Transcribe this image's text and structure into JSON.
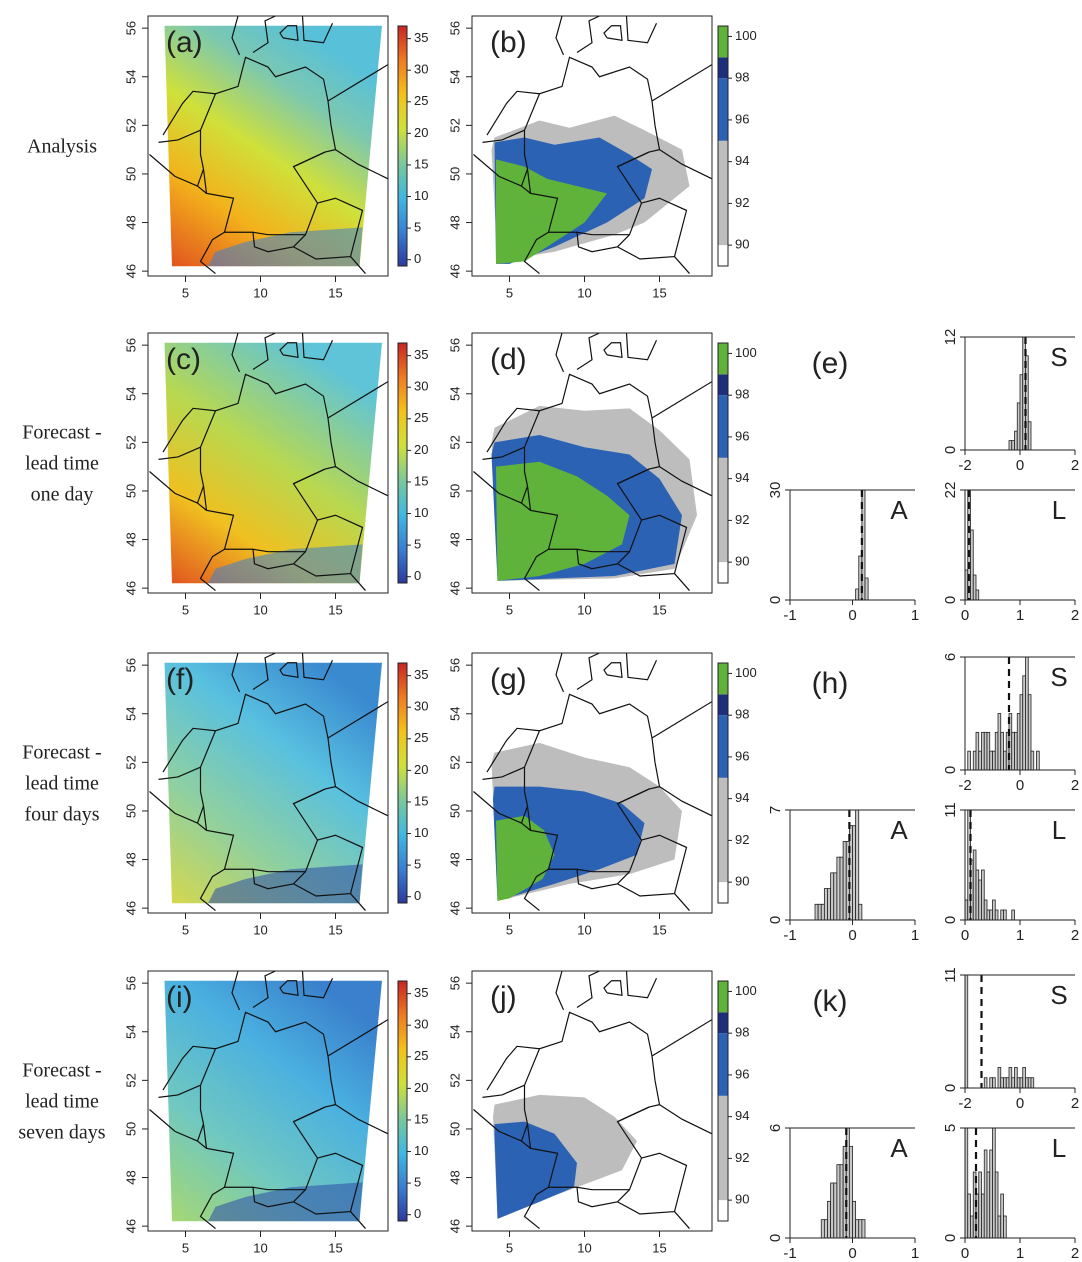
{
  "row_labels": [
    [
      "Analysis"
    ],
    [
      "Forecast -",
      "lead time",
      "one day"
    ],
    [
      "Forecast -",
      "lead time",
      "four days"
    ],
    [
      "Forecast -",
      "lead time",
      "seven days"
    ]
  ],
  "chart_data": [
    {
      "type": "map",
      "panel": "(a)",
      "xlim": [
        2.5,
        18.5
      ],
      "xticks": [
        5,
        10,
        15
      ],
      "ylim": [
        45.8,
        56.5
      ],
      "yticks": [
        46,
        48,
        50,
        52,
        54,
        56
      ],
      "colorbar": {
        "kind": "continuous",
        "lim": [
          -1,
          37
        ],
        "ticks": [
          0,
          5,
          10,
          15,
          20,
          25,
          30,
          35
        ],
        "colors": [
          "#2b3a9a",
          "#3a7fd0",
          "#40b8e0",
          "#7cc89a",
          "#cfe03a",
          "#f3c21b",
          "#ee7b22",
          "#c82424"
        ]
      }
    },
    {
      "type": "map",
      "panel": "(b)",
      "xlim": [
        2.5,
        18.5
      ],
      "xticks": [
        5,
        10,
        15
      ],
      "ylim": [
        45.8,
        56.5
      ],
      "yticks": [
        46,
        48,
        50,
        52,
        54,
        56
      ],
      "colorbar": {
        "kind": "discrete",
        "lim": [
          89,
          100.5
        ],
        "ticks": [
          90,
          92,
          94,
          96,
          98,
          100
        ],
        "levels": [
          89,
          90,
          95,
          98,
          99,
          100.5
        ],
        "colors": [
          "#ffffff",
          "#bdbdbd",
          "#2c62b4",
          "#1d2f7a",
          "#5fb33a"
        ]
      }
    },
    {
      "type": "map",
      "panel": "(c)",
      "xlim": [
        2.5,
        18.5
      ],
      "xticks": [
        5,
        10,
        15
      ],
      "ylim": [
        45.8,
        56.5
      ],
      "yticks": [
        46,
        48,
        50,
        52,
        54,
        56
      ],
      "colorbar": {
        "kind": "continuous",
        "lim": [
          -1,
          37
        ],
        "ticks": [
          0,
          5,
          10,
          15,
          20,
          25,
          30,
          35
        ],
        "colors": [
          "#2b3a9a",
          "#3a7fd0",
          "#40b8e0",
          "#7cc89a",
          "#cfe03a",
          "#f3c21b",
          "#ee7b22",
          "#c82424"
        ]
      }
    },
    {
      "type": "map",
      "panel": "(d)",
      "xlim": [
        2.5,
        18.5
      ],
      "xticks": [
        5,
        10,
        15
      ],
      "ylim": [
        45.8,
        56.5
      ],
      "yticks": [
        46,
        48,
        50,
        52,
        54,
        56
      ],
      "colorbar": {
        "kind": "discrete",
        "lim": [
          89,
          100.5
        ],
        "ticks": [
          90,
          92,
          94,
          96,
          98,
          100
        ],
        "levels": [
          89,
          90,
          95,
          98,
          99,
          100.5
        ],
        "colors": [
          "#ffffff",
          "#bdbdbd",
          "#2c62b4",
          "#1d2f7a",
          "#5fb33a"
        ]
      }
    },
    {
      "type": "histogram",
      "panel": "(e)",
      "label": "S",
      "xlim": [
        -2,
        2
      ],
      "xticks": [
        -2,
        0,
        2
      ],
      "ylim": [
        0,
        12
      ],
      "yticks": [
        0,
        12
      ],
      "bins": [
        -0.4,
        -0.3,
        -0.2,
        -0.1,
        0,
        0.1,
        0.2,
        0.3,
        0.4
      ],
      "counts": [
        1,
        1,
        2,
        5,
        8,
        12,
        10,
        3
      ],
      "reference_line": 0.2
    },
    {
      "type": "histogram",
      "label": "A",
      "xlim": [
        -1,
        1
      ],
      "xticks": [
        -1,
        0,
        1
      ],
      "ylim": [
        0,
        30
      ],
      "yticks": [
        0,
        30
      ],
      "bins": [
        0.05,
        0.1,
        0.15,
        0.2,
        0.25
      ],
      "counts": [
        3,
        12,
        30,
        6
      ],
      "reference_line": 0.15
    },
    {
      "type": "histogram",
      "label": "L",
      "xlim": [
        0,
        2
      ],
      "xticks": [
        0,
        1,
        2
      ],
      "ylim": [
        0,
        22
      ],
      "yticks": [
        0,
        22
      ],
      "bins": [
        0,
        0.05,
        0.1,
        0.15,
        0.2,
        0.25
      ],
      "counts": [
        6,
        22,
        14,
        5,
        2
      ],
      "reference_line": 0.07
    },
    {
      "type": "map",
      "panel": "(f)",
      "xlim": [
        2.5,
        18.5
      ],
      "xticks": [
        5,
        10,
        15
      ],
      "ylim": [
        45.8,
        56.5
      ],
      "yticks": [
        46,
        48,
        50,
        52,
        54,
        56
      ],
      "colorbar": {
        "kind": "continuous",
        "lim": [
          -1,
          37
        ],
        "ticks": [
          0,
          5,
          10,
          15,
          20,
          25,
          30,
          35
        ],
        "colors": [
          "#2b3a9a",
          "#3a7fd0",
          "#40b8e0",
          "#7cc89a",
          "#cfe03a",
          "#f3c21b",
          "#ee7b22",
          "#c82424"
        ]
      }
    },
    {
      "type": "map",
      "panel": "(g)",
      "xlim": [
        2.5,
        18.5
      ],
      "xticks": [
        5,
        10,
        15
      ],
      "ylim": [
        45.8,
        56.5
      ],
      "yticks": [
        46,
        48,
        50,
        52,
        54,
        56
      ],
      "colorbar": {
        "kind": "discrete",
        "lim": [
          89,
          100.5
        ],
        "ticks": [
          90,
          92,
          94,
          96,
          98,
          100
        ],
        "levels": [
          89,
          90,
          95,
          98,
          99,
          100.5
        ],
        "colors": [
          "#ffffff",
          "#bdbdbd",
          "#2c62b4",
          "#1d2f7a",
          "#5fb33a"
        ]
      }
    },
    {
      "type": "histogram",
      "panel": "(h)",
      "label": "S",
      "xlim": [
        -2,
        2
      ],
      "xticks": [
        -2,
        0,
        2
      ],
      "ylim": [
        0,
        6
      ],
      "yticks": [
        0,
        6
      ],
      "bins": [
        -1.9,
        -1.8,
        -1.7,
        -1.6,
        -1.5,
        -1.4,
        -1.3,
        -1.2,
        -1.1,
        -1.0,
        -0.9,
        -0.8,
        -0.7,
        -0.6,
        -0.5,
        -0.4,
        -0.3,
        -0.2,
        -0.1,
        0,
        0.1,
        0.2,
        0.3,
        0.4,
        0.5,
        0.6,
        0.7,
        0.8
      ],
      "counts": [
        1,
        0,
        1,
        2,
        1,
        2,
        2,
        2,
        1,
        1,
        2,
        3,
        2,
        1,
        2,
        3,
        2,
        2,
        3,
        4,
        5,
        6,
        4,
        1,
        0,
        1,
        0
      ],
      "reference_line": -0.4
    },
    {
      "type": "histogram",
      "label": "A",
      "xlim": [
        -1,
        1
      ],
      "xticks": [
        -1,
        0,
        1
      ],
      "ylim": [
        0,
        7
      ],
      "yticks": [
        0,
        7
      ],
      "bins": [
        -0.6,
        -0.55,
        -0.5,
        -0.45,
        -0.4,
        -0.35,
        -0.3,
        -0.25,
        -0.2,
        -0.15,
        -0.1,
        -0.05,
        0,
        0.05,
        0.1,
        0.15
      ],
      "counts": [
        1,
        1,
        1,
        2,
        2,
        3,
        3,
        4,
        4,
        5,
        5,
        6,
        6,
        7,
        1
      ],
      "reference_line": -0.05
    },
    {
      "type": "histogram",
      "label": "L",
      "xlim": [
        0,
        2
      ],
      "xticks": [
        0,
        1,
        2
      ],
      "ylim": [
        0,
        11
      ],
      "yticks": [
        0,
        11
      ],
      "bins": [
        0,
        0.05,
        0.1,
        0.15,
        0.2,
        0.25,
        0.3,
        0.35,
        0.4,
        0.45,
        0.5,
        0.55,
        0.6,
        0.65,
        0.7,
        0.75,
        0.8,
        0.85,
        0.9
      ],
      "counts": [
        2,
        11,
        6,
        7,
        5,
        4,
        5,
        2,
        1,
        1,
        2,
        1,
        0,
        1,
        1,
        0,
        0,
        1
      ],
      "reference_line": 0.1
    },
    {
      "type": "map",
      "panel": "(i)",
      "xlim": [
        2.5,
        18.5
      ],
      "xticks": [
        5,
        10,
        15
      ],
      "ylim": [
        45.8,
        56.5
      ],
      "yticks": [
        46,
        48,
        50,
        52,
        54,
        56
      ],
      "colorbar": {
        "kind": "continuous",
        "lim": [
          -1,
          37
        ],
        "ticks": [
          0,
          5,
          10,
          15,
          20,
          25,
          30,
          35
        ],
        "colors": [
          "#2b3a9a",
          "#3a7fd0",
          "#40b8e0",
          "#7cc89a",
          "#cfe03a",
          "#f3c21b",
          "#ee7b22",
          "#c82424"
        ]
      }
    },
    {
      "type": "map",
      "panel": "(j)",
      "xlim": [
        2.5,
        18.5
      ],
      "xticks": [
        5,
        10,
        15
      ],
      "ylim": [
        45.8,
        56.5
      ],
      "yticks": [
        46,
        48,
        50,
        52,
        54,
        56
      ],
      "colorbar": {
        "kind": "discrete",
        "lim": [
          89,
          100.5
        ],
        "ticks": [
          90,
          92,
          94,
          96,
          98,
          100
        ],
        "levels": [
          89,
          90,
          95,
          98,
          99,
          100.5
        ],
        "colors": [
          "#ffffff",
          "#bdbdbd",
          "#2c62b4",
          "#1d2f7a",
          "#5fb33a"
        ]
      }
    },
    {
      "type": "histogram",
      "panel": "(k)",
      "label": "S",
      "xlim": [
        -2,
        2
      ],
      "xticks": [
        -2,
        0,
        2
      ],
      "ylim": [
        0,
        11
      ],
      "yticks": [
        0,
        11
      ],
      "bins": [
        -2,
        -1.9,
        -1.8,
        -1.7,
        -1.6,
        -1.5,
        -1.4,
        -1.3,
        -1.2,
        -1.1,
        -1.0,
        -0.9,
        -0.8,
        -0.7,
        -0.6,
        -0.5,
        -0.4,
        -0.3,
        -0.2,
        -0.1,
        0,
        0.1,
        0.2,
        0.3,
        0.4,
        0.5
      ],
      "counts": [
        11,
        0,
        0,
        0,
        0,
        0,
        0,
        1,
        0,
        1,
        1,
        0,
        2,
        1,
        1,
        1,
        2,
        1,
        2,
        1,
        1,
        2,
        1,
        1,
        1
      ],
      "reference_line": -1.4
    },
    {
      "type": "histogram",
      "label": "A",
      "xlim": [
        -1,
        1
      ],
      "xticks": [
        -1,
        0,
        1
      ],
      "ylim": [
        0,
        6
      ],
      "yticks": [
        0,
        6
      ],
      "bins": [
        -0.5,
        -0.45,
        -0.4,
        -0.35,
        -0.3,
        -0.25,
        -0.2,
        -0.15,
        -0.1,
        -0.05,
        0,
        0.05,
        0.1,
        0.15,
        0.2
      ],
      "counts": [
        1,
        1,
        2,
        3,
        3,
        4,
        4,
        5,
        6,
        5,
        2,
        1,
        1,
        1
      ],
      "reference_line": -0.1
    },
    {
      "type": "histogram",
      "label": "L",
      "xlim": [
        0,
        2
      ],
      "xticks": [
        0,
        1,
        2
      ],
      "ylim": [
        0,
        5
      ],
      "yticks": [
        0,
        5
      ],
      "bins": [
        0,
        0.05,
        0.1,
        0.15,
        0.2,
        0.25,
        0.3,
        0.35,
        0.4,
        0.45,
        0.5,
        0.55,
        0.6,
        0.65,
        0.7,
        0.75,
        0.8
      ],
      "counts": [
        5,
        2,
        1,
        3,
        2,
        3,
        2,
        4,
        3,
        4,
        5,
        3,
        1,
        2,
        1,
        0
      ],
      "reference_line": 0.2
    }
  ]
}
